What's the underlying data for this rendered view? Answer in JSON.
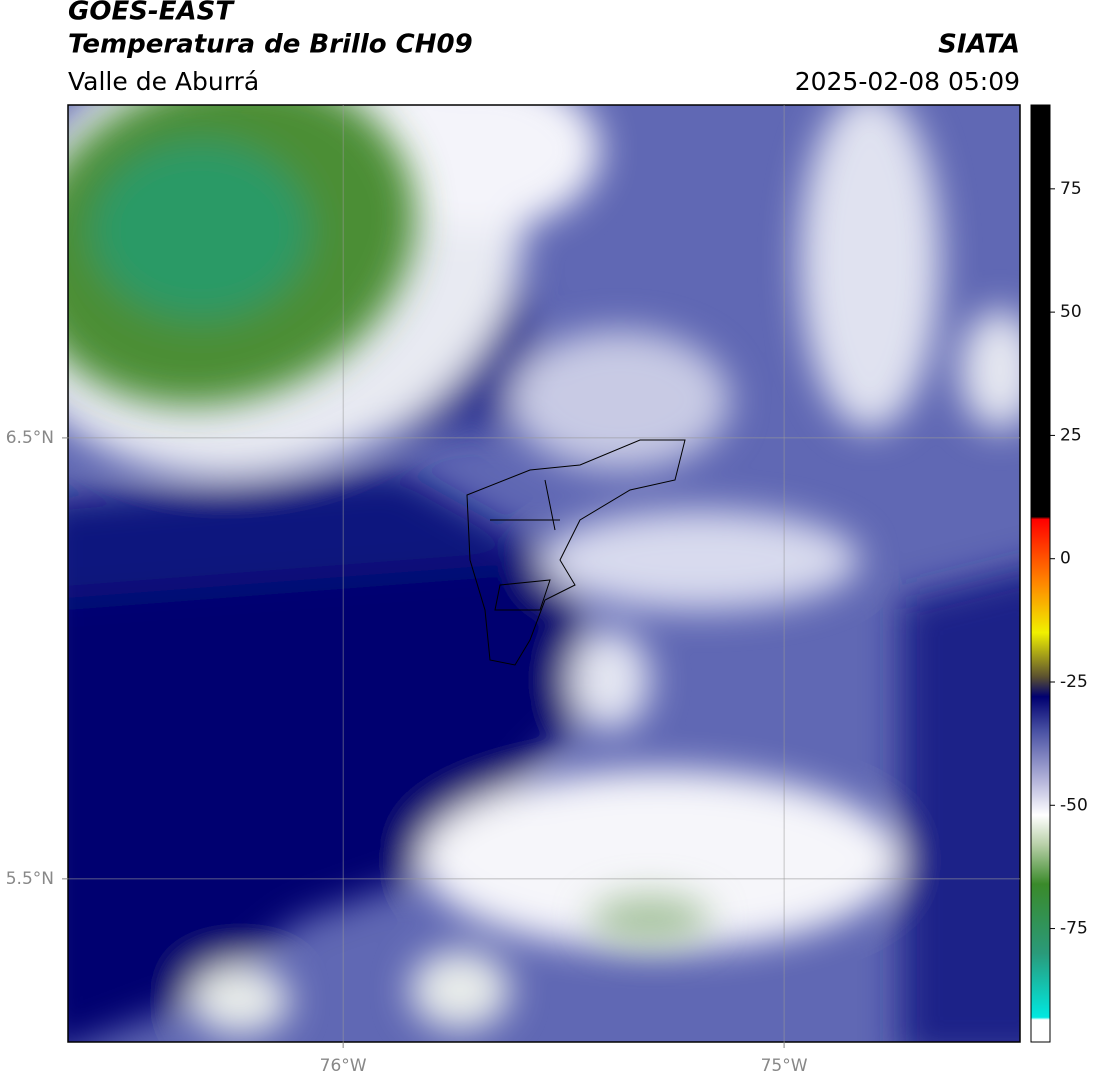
{
  "header": {
    "title": "GOES-EAST",
    "subtitle": "Temperatura de Brillo CH09",
    "region": "Valle de Aburrá",
    "source": "SIATA",
    "datetime": "2025-02-08 05:09"
  },
  "map": {
    "xlim": [
      -76.624,
      -74.465
    ],
    "ylim": [
      5.13,
      7.255
    ],
    "xticks": [
      {
        "value": -76,
        "label": "76°W"
      },
      {
        "value": -75,
        "label": "75°W"
      }
    ],
    "yticks": [
      {
        "value": 6.5,
        "label": "6.5°N"
      },
      {
        "value": 5.5,
        "label": "5.5°N"
      }
    ],
    "grid": true
  },
  "colorbar": {
    "lim": [
      -98,
      92
    ],
    "ticks": [
      75,
      50,
      25,
      0,
      -25,
      -50,
      -75
    ],
    "stops": [
      {
        "value": -98,
        "color": "#ffffff"
      },
      {
        "value": -93.5,
        "color": "#ffffff"
      },
      {
        "value": -93,
        "color": "#00e8e0"
      },
      {
        "value": -80,
        "color": "#2a9a7a"
      },
      {
        "value": -66,
        "color": "#3a8a2a"
      },
      {
        "value": -58,
        "color": "#b8d0a8"
      },
      {
        "value": -52,
        "color": "#ffffff"
      },
      {
        "value": -45,
        "color": "#b4b4da"
      },
      {
        "value": -35,
        "color": "#4a52a4"
      },
      {
        "value": -28,
        "color": "#000070"
      },
      {
        "value": -24,
        "color": "#5a5030"
      },
      {
        "value": -15,
        "color": "#f0f000"
      },
      {
        "value": -5,
        "color": "#ff8800"
      },
      {
        "value": 8,
        "color": "#ff0000"
      },
      {
        "value": 8.5,
        "color": "#000000"
      },
      {
        "value": 92,
        "color": "#000000"
      }
    ]
  }
}
